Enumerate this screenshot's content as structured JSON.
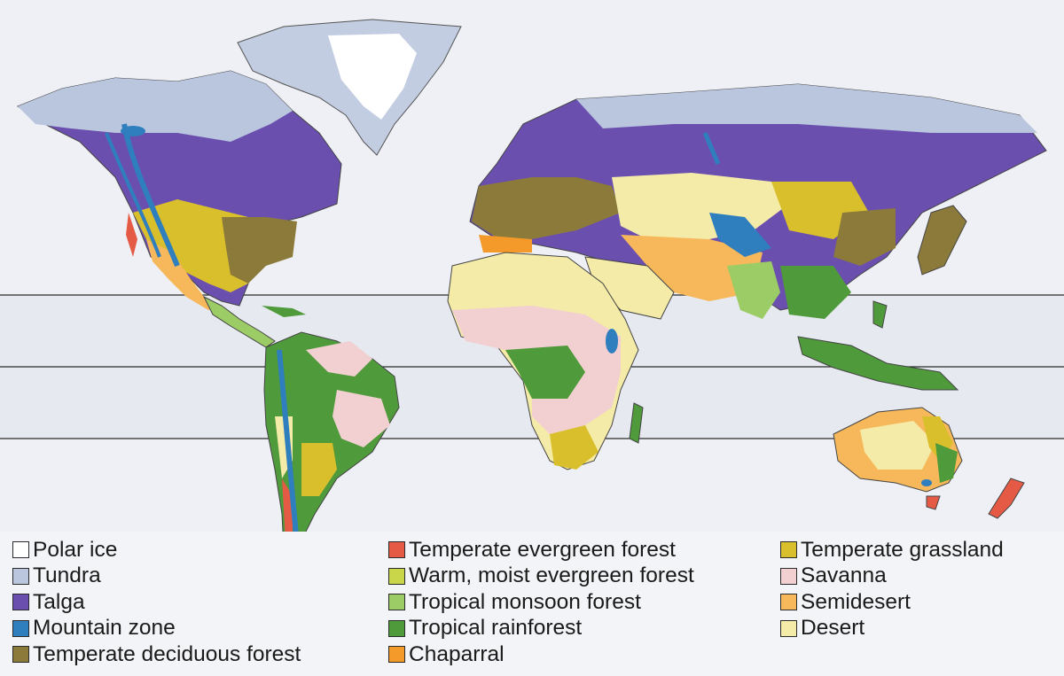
{
  "map": {
    "background": "#eef0f5",
    "ocean_band": "#e4e7ee",
    "latitude_line_color": "#2b2b2b"
  },
  "legend": {
    "columns": [
      [
        {
          "id": "polar-ice",
          "label": "Polar ice",
          "color": "#ffffff"
        },
        {
          "id": "tundra",
          "label": "Tundra",
          "color": "#b9c6de"
        },
        {
          "id": "talga",
          "label": "Talga",
          "color": "#6b4fae"
        },
        {
          "id": "mountain-zone",
          "label": "Mountain zone",
          "color": "#2f7fbf"
        },
        {
          "id": "temperate-deciduous-forest",
          "label": "Temperate deciduous forest",
          "color": "#8c7a3a"
        }
      ],
      [
        {
          "id": "temperate-evergreen-forest",
          "label": "Temperate evergreen forest",
          "color": "#e55a45"
        },
        {
          "id": "warm-moist-evergreen-forest",
          "label": "Warm, moist evergreen forest",
          "color": "#c9d64a"
        },
        {
          "id": "tropical-monsoon-forest",
          "label": "Tropical monsoon forest",
          "color": "#9ccc65"
        },
        {
          "id": "tropical-rainforest",
          "label": "Tropical rainforest",
          "color": "#4f9a3a"
        },
        {
          "id": "chaparral",
          "label": "Chaparral",
          "color": "#f39a2b"
        }
      ],
      [
        {
          "id": "temperate-grassland",
          "label": "Temperate grassland",
          "color": "#d9bf2c"
        },
        {
          "id": "savanna",
          "label": "Savanna",
          "color": "#f2cfd0"
        },
        {
          "id": "semidesert",
          "label": "Semidesert",
          "color": "#f6b85a"
        },
        {
          "id": "desert",
          "label": "Desert",
          "color": "#f4eba8"
        }
      ]
    ]
  }
}
